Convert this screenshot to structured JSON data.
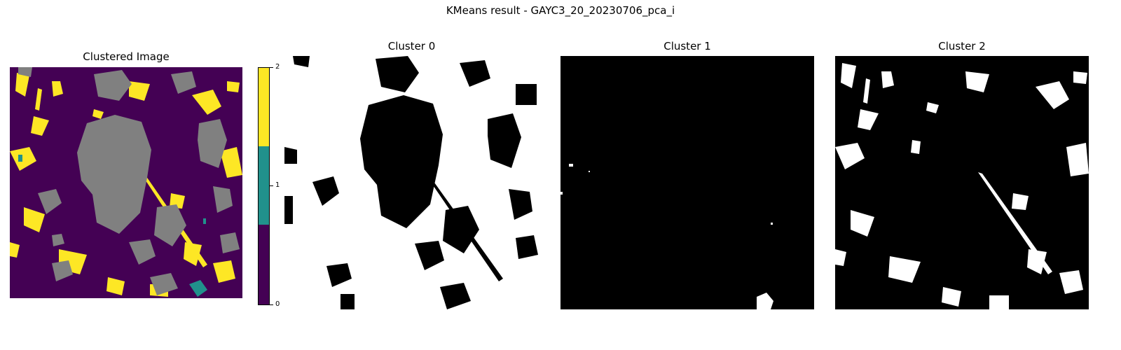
{
  "figure": {
    "suptitle": "KMeans result - GAYC3_20_20230706_pca_i"
  },
  "panels": [
    {
      "title": "Clustered Image"
    },
    {
      "title": "Cluster 0"
    },
    {
      "title": "Cluster 1"
    },
    {
      "title": "Cluster 2"
    }
  ],
  "colorbar": {
    "ticks": [
      "0",
      "1",
      "2"
    ],
    "colors": {
      "cluster_0": "#440154",
      "cluster_1": "#21918c",
      "cluster_2": "#fde725"
    }
  },
  "image_colors": {
    "cluster_0": "#440154",
    "cluster_1": "#21918c",
    "cluster_2": "#fde725",
    "nodata": "#808080",
    "mask_on": "#ffffff",
    "mask_off": "#000000"
  }
}
